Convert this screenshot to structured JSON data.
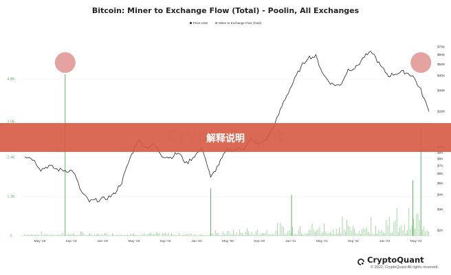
{
  "chart_data": {
    "type": "line",
    "title": "Bitcoin: Miner to Exchange Flow (Total) - Poolin, All Exchanges",
    "legend": [
      {
        "label": "Price USD",
        "color": "#222222"
      },
      {
        "label": "Miner to Exchange Flow (Total)",
        "color": "#59b55f"
      }
    ],
    "left_axis": {
      "ticks": [
        "0",
        "1.2K",
        "2.4K",
        "3.5K",
        "4.8K"
      ],
      "values": [
        0,
        1200,
        2400,
        3500,
        4800
      ],
      "range": [
        0,
        6000
      ],
      "color": "#59b55f"
    },
    "right_axis": {
      "ticks": [
        "$2K",
        "$3K",
        "$4K",
        "$5K",
        "$6K",
        "$7K",
        "$8K",
        "$9K",
        "$10K",
        "$20K",
        "$30K",
        "$40K",
        "$50K",
        "$60K",
        "$70K"
      ],
      "values": [
        2000,
        3000,
        4000,
        5000,
        6000,
        7000,
        8000,
        9000,
        10000,
        20000,
        30000,
        40000,
        50000,
        60000,
        70000
      ],
      "scale": "log",
      "range": [
        1800,
        80000
      ]
    },
    "x_axis": {
      "ticks": [
        "May '18",
        "Sep '18",
        "Jan '19",
        "May '19",
        "Sep '19",
        "Jan '20",
        "May '20",
        "Sep '20",
        "Jan '21",
        "May '21",
        "Sep '21",
        "Jan '22",
        "May '22"
      ]
    },
    "series": [
      {
        "name": "Price USD",
        "type": "line",
        "color": "#222222",
        "x": [
          "Apr '18",
          "May '18",
          "Jun '18",
          "Jul '18",
          "Aug '18",
          "Sep '18",
          "Oct '18",
          "Nov '18",
          "Dec '18",
          "Jan '19",
          "Feb '19",
          "Mar '19",
          "Apr '19",
          "May '19",
          "Jun '19",
          "Jul '19",
          "Aug '19",
          "Sep '19",
          "Oct '19",
          "Nov '19",
          "Dec '19",
          "Jan '20",
          "Feb '20",
          "Mar '20",
          "Apr '20",
          "May '20",
          "Jun '20",
          "Jul '20",
          "Aug '20",
          "Sep '20",
          "Oct '20",
          "Nov '20",
          "Dec '20",
          "Jan '21",
          "Feb '21",
          "Mar '21",
          "Apr '21",
          "May '21",
          "Jun '21",
          "Jul '21",
          "Aug '21",
          "Sep '21",
          "Oct '21",
          "Nov '21",
          "Dec '21",
          "Jan '22",
          "Feb '22",
          "Mar '22",
          "Apr '22",
          "May '22",
          "Jun '22"
        ],
        "values": [
          8500,
          8000,
          6500,
          7000,
          6500,
          6400,
          6300,
          4200,
          3500,
          3600,
          3700,
          4000,
          5100,
          8000,
          11500,
          10000,
          10500,
          8500,
          8200,
          9000,
          7300,
          8500,
          9800,
          5500,
          7200,
          9500,
          9500,
          9800,
          11500,
          10500,
          12000,
          16000,
          24000,
          33000,
          45000,
          57000,
          58000,
          40000,
          34000,
          33000,
          45000,
          47000,
          58000,
          63000,
          48000,
          40000,
          42000,
          43000,
          40000,
          30000,
          20000
        ]
      },
      {
        "name": "Miner to Exchange Flow (Total)",
        "type": "bar",
        "color": "#59b55f",
        "spikes": [
          {
            "x": "Sep '18",
            "value": 4950
          },
          {
            "x": "Mar '20",
            "value": 1450
          },
          {
            "x": "Jan '21",
            "value": 1250
          },
          {
            "x": "Apr '22",
            "value": 1700
          },
          {
            "x": "May '22",
            "value": 3300
          }
        ]
      }
    ],
    "annotations": [
      "highlight Sep '18",
      "highlight May '22"
    ]
  },
  "watermark": "CryptoQuant",
  "banner": "解释说明",
  "brand": "CryptoQuant",
  "copyright": "© 2022. CryptoQuant All rights reserved."
}
